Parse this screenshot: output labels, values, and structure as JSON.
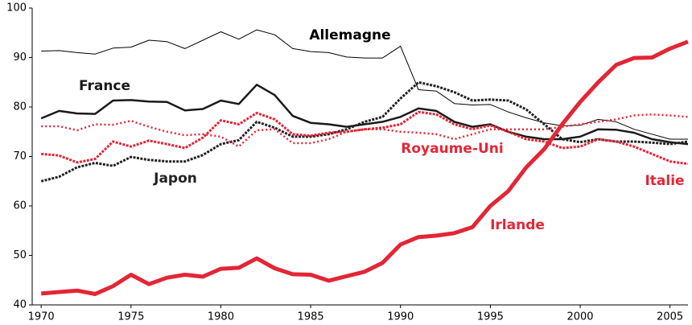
{
  "chart_data": {
    "type": "line",
    "x": [
      1970,
      1971,
      1972,
      1973,
      1974,
      1975,
      1976,
      1977,
      1978,
      1979,
      1980,
      1981,
      1982,
      1983,
      1984,
      1985,
      1986,
      1987,
      1988,
      1989,
      1990,
      1991,
      1992,
      1993,
      1994,
      1995,
      1996,
      1997,
      1998,
      1999,
      2000,
      2001,
      2002,
      2003,
      2004,
      2005,
      2006
    ],
    "xlim": [
      1969.5,
      2006
    ],
    "xticks": [
      1970,
      1975,
      1980,
      1985,
      1990,
      1995,
      2000,
      2005
    ],
    "ylim": [
      40,
      100
    ],
    "yticks": [
      40,
      50,
      60,
      70,
      80,
      90,
      100
    ],
    "series": [
      {
        "name": "Allemagne",
        "color": "#000000",
        "dash": "solid",
        "values": [
          91.3,
          91.4,
          91.0,
          90.7,
          91.9,
          92.1,
          93.5,
          93.2,
          91.8,
          93.5,
          95.2,
          93.7,
          95.6,
          94.6,
          91.8,
          91.2,
          91.0,
          90.1,
          89.9,
          89.9,
          92.3,
          83.5,
          83.2,
          80.7,
          80.4,
          80.5,
          79.0,
          77.8,
          76.8,
          76.2,
          76.3,
          77.5,
          77.0,
          75.5,
          74.5,
          73.5,
          73.5
        ]
      },
      {
        "name": "France",
        "color": "#1a1a1a",
        "dash": "solid",
        "values": [
          77.7,
          79.2,
          78.7,
          78.6,
          81.3,
          81.4,
          81.1,
          81.0,
          79.3,
          79.6,
          81.3,
          80.6,
          84.5,
          82.4,
          78.2,
          76.8,
          76.5,
          76.0,
          76.5,
          77.0,
          78.0,
          79.7,
          79.2,
          77.0,
          76.0,
          76.5,
          75.0,
          74.0,
          73.5,
          73.5,
          74.0,
          75.5,
          75.4,
          74.8,
          73.5,
          72.9,
          72.5
        ]
      },
      {
        "name": "Japon",
        "color": "#222222",
        "dash": "dashed",
        "values": [
          65.0,
          65.9,
          67.8,
          68.7,
          68.1,
          69.9,
          69.3,
          69.0,
          69.0,
          70.3,
          72.5,
          73.3,
          77.0,
          75.8,
          74.0,
          74.0,
          74.5,
          75.5,
          77.0,
          78.0,
          81.7,
          85.0,
          84.2,
          83.0,
          81.3,
          81.5,
          81.3,
          79.5,
          76.5,
          73.5,
          72.9,
          73.5,
          73.0,
          73.0,
          72.8,
          72.5,
          73.0
        ]
      },
      {
        "name": "Royaume-Uni",
        "color": "#e32636",
        "dash": "dotted",
        "values": [
          76.1,
          76.1,
          75.3,
          76.5,
          76.4,
          77.2,
          76.0,
          75.0,
          74.3,
          74.5,
          74.0,
          72.0,
          75.3,
          75.5,
          72.7,
          72.7,
          73.5,
          75.0,
          75.5,
          75.5,
          75.0,
          74.8,
          74.5,
          73.5,
          74.5,
          75.5,
          75.5,
          75.5,
          75.5,
          76.0,
          76.5,
          77.0,
          77.5,
          78.3,
          78.5,
          78.3,
          78.0
        ]
      },
      {
        "name": "Italie",
        "color": "#e32636",
        "dash": "dashed",
        "values": [
          70.5,
          70.2,
          68.8,
          69.5,
          73.0,
          72.0,
          73.2,
          72.5,
          71.7,
          73.8,
          77.3,
          76.5,
          78.8,
          77.5,
          74.5,
          74.2,
          74.8,
          75.0,
          75.5,
          75.8,
          76.5,
          79.0,
          78.5,
          76.5,
          75.5,
          76.3,
          75.0,
          73.5,
          73.0,
          71.7,
          72.0,
          73.5,
          73.0,
          72.0,
          70.5,
          69.0,
          68.5
        ]
      },
      {
        "name": "Irlande",
        "color": "#e32636",
        "dash": "solid",
        "values": [
          42.3,
          42.6,
          42.9,
          42.2,
          43.8,
          46.1,
          44.2,
          45.5,
          46.1,
          45.7,
          47.3,
          47.5,
          49.4,
          47.4,
          46.2,
          46.1,
          44.9,
          45.8,
          46.7,
          48.5,
          52.2,
          53.7,
          54.0,
          54.5,
          55.7,
          60.0,
          63.0,
          67.8,
          71.5,
          76.5,
          81.0,
          85.0,
          88.5,
          89.9,
          90.0,
          91.8,
          93.2
        ]
      }
    ]
  }
}
